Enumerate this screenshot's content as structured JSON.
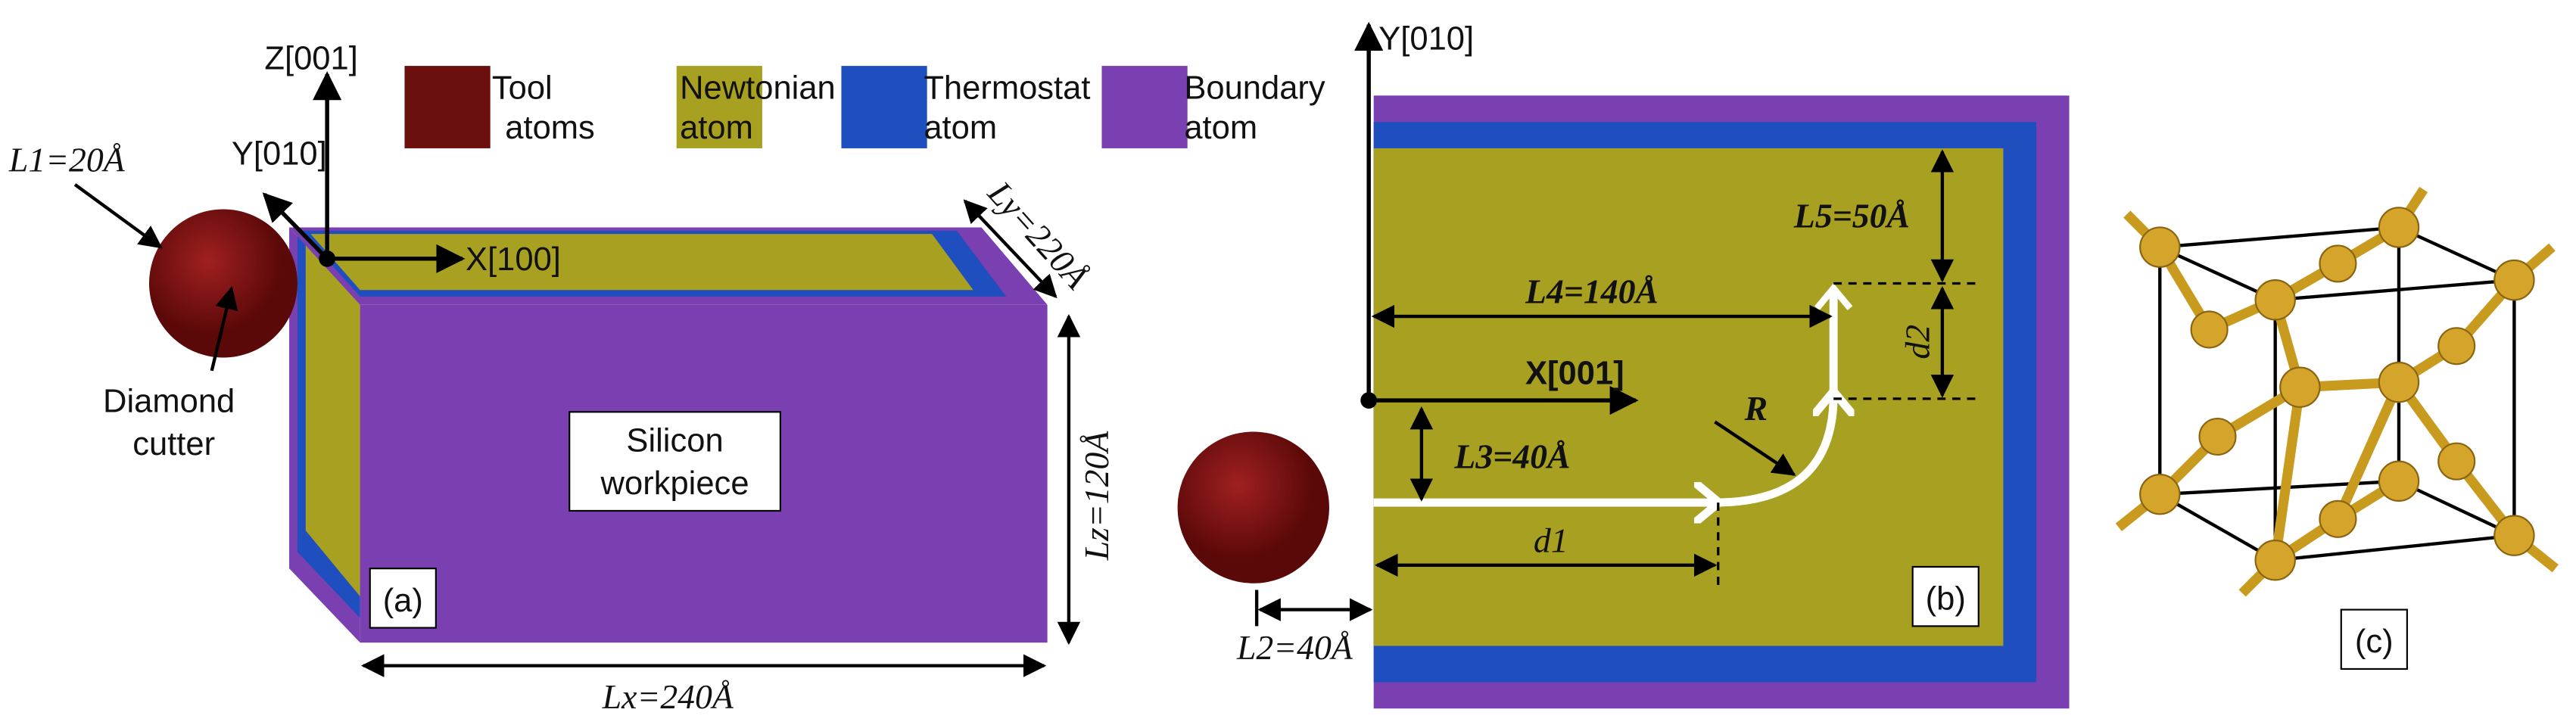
{
  "panel_a": {
    "legend": [
      {
        "lines": [
          "Tool",
          "atoms"
        ]
      },
      {
        "lines": [
          "Newtonian",
          "atom"
        ]
      },
      {
        "lines": [
          "Thermostat",
          "atom"
        ]
      },
      {
        "lines": [
          "Boundary",
          "atom"
        ]
      }
    ],
    "axis_z": "Z[001]",
    "axis_y": "Y[010]",
    "axis_x": "X[100]",
    "l1": "L1=20Å",
    "ly": "Ly=220Å",
    "lz": "Lz=120Å",
    "lx": "Lx=240Å",
    "cutter": [
      "Diamond",
      "cutter"
    ],
    "workpiece": [
      "Silicon",
      "workpiece"
    ],
    "tag": "(a)"
  },
  "panel_b": {
    "axis_y": "Y[010]",
    "axis_x": "X[001]",
    "l5": "L5=50Å",
    "l4": "L4=140Å",
    "d2": "d2",
    "r": "R",
    "l3": "L3=40Å",
    "d1": "d1",
    "l2": "L2=40Å",
    "tag": "(b)"
  },
  "panel_c": {
    "tag": "(c)"
  }
}
